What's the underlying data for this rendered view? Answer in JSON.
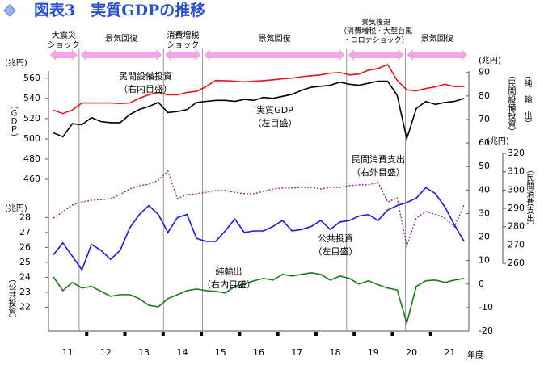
{
  "chart_data": {
    "type": "line",
    "title": "図表3　実質GDPの推移",
    "x": [
      11.125,
      11.375,
      11.625,
      11.875,
      12.125,
      12.375,
      12.625,
      12.875,
      13.125,
      13.375,
      13.625,
      13.875,
      14.125,
      14.375,
      14.625,
      14.875,
      15.125,
      15.375,
      15.625,
      15.875,
      16.125,
      16.375,
      16.625,
      16.875,
      17.125,
      17.375,
      17.625,
      17.875,
      18.125,
      18.375,
      18.625,
      18.875,
      19.125,
      19.375,
      19.625,
      19.875,
      20.125,
      20.375,
      20.625,
      20.875,
      21.125,
      21.375,
      21.625,
      21.875
    ],
    "xlim": [
      11,
      22
    ],
    "xticks": [
      {
        "value": 11.5,
        "label": "11"
      },
      {
        "value": 12.5,
        "label": "12"
      },
      {
        "value": 13.5,
        "label": "13"
      },
      {
        "value": 14.5,
        "label": "14"
      },
      {
        "value": 15.5,
        "label": "15"
      },
      {
        "value": 16.5,
        "label": "16"
      },
      {
        "value": 17.5,
        "label": "17"
      },
      {
        "value": 18.5,
        "label": "18"
      },
      {
        "value": 19.5,
        "label": "19"
      },
      {
        "value": 20.5,
        "label": "20"
      },
      {
        "value": 21.5,
        "label": "21"
      }
    ],
    "xminorticks": [
      12,
      13,
      14,
      15,
      16,
      17,
      18,
      19,
      20,
      21
    ],
    "xlabel": "年度",
    "periods": [
      {
        "label": [
          "大震災",
          "ショック"
        ],
        "start": 11,
        "end": 11.8
      },
      {
        "label": [
          "景気回復"
        ],
        "start": 11.8,
        "end": 14.01
      },
      {
        "label": [
          "消費増税",
          "ショック"
        ],
        "start": 14.01,
        "end": 15.03
      },
      {
        "label": [
          "景気回復"
        ],
        "start": 15.03,
        "end": 18.8
      },
      {
        "label": [
          "景気後退",
          "（消費増税・大型台風",
          "・コロナショック）"
        ],
        "start": 18.8,
        "end": 20.34
      },
      {
        "label": [
          "景気回復"
        ],
        "start": 20.34,
        "end": 22
      }
    ],
    "axes": {
      "gdp": {
        "ylim": [
          310,
          567
        ],
        "yticks": [
          460,
          480,
          500,
          520,
          540,
          560
        ],
        "unit": "(兆円)",
        "title": "（ＧＤＰ）"
      },
      "public": {
        "ylim": [
          20.4,
          37.8
        ],
        "yticks": [
          22,
          23,
          24,
          25,
          26,
          27,
          28
        ],
        "unit": "(兆円)",
        "title": "（公共投資）"
      },
      "inner": {
        "ylim": [
          -20,
          90.6
        ],
        "yticks": [
          -20,
          -10,
          0,
          10,
          20,
          30,
          40,
          50,
          60,
          70,
          80,
          90
        ],
        "unit": "(兆円)",
        "title": [
          "（純　輸　出）",
          "（民間設備投資）"
        ]
      },
      "outer": {
        "ylim": [
          223,
          365
        ],
        "yticks": [
          260,
          270,
          280,
          290,
          300,
          310,
          320
        ],
        "unit": "(兆円)",
        "title": "（民間消費支出）"
      }
    },
    "series": [
      {
        "name": "実質GDP",
        "note": "（左目盛）",
        "axis": "gdp",
        "color": "#000000",
        "style": "solid",
        "values": [
          506,
          502,
          515,
          514,
          521,
          517,
          516,
          516,
          524,
          529,
          532,
          536,
          526,
          527,
          529,
          536,
          537,
          538,
          538,
          537,
          539,
          538,
          541,
          540,
          542,
          544,
          548,
          551,
          552,
          553,
          556,
          554,
          553,
          555,
          557,
          557,
          543,
          500,
          530,
          537,
          534,
          536,
          537,
          540
        ]
      },
      {
        "name": "民間設備投資",
        "note": "（右内目盛）",
        "axis": "inner",
        "color": "#e8141c",
        "style": "solid",
        "values": [
          74,
          72.5,
          74,
          77,
          77,
          77,
          77,
          76.8,
          77,
          79,
          80.5,
          81.5,
          80.5,
          80.5,
          81.5,
          82,
          84,
          86.6,
          86.5,
          86.3,
          86,
          86.3,
          86.5,
          86.9,
          87.3,
          87.6,
          88.2,
          88.6,
          89,
          89.7,
          90,
          89,
          89.3,
          91,
          91.7,
          93.4,
          86.6,
          82.6,
          82.2,
          83.2,
          83.9,
          85,
          84,
          84
        ]
      },
      {
        "name": "民間消費支出",
        "note": "（右外目盛）",
        "axis": "outer",
        "color": "#8b1a8b",
        "style": "dotted",
        "values": [
          284.7,
          288.2,
          291.8,
          293.5,
          294.4,
          294.8,
          295.3,
          297.5,
          300.6,
          302.4,
          303.2,
          305.4,
          310.3,
          295.3,
          297.5,
          298,
          298.8,
          299.7,
          299.7,
          298.8,
          298,
          298,
          299.3,
          300.6,
          301.1,
          301.1,
          301.5,
          301.5,
          300.6,
          301.5,
          301.5,
          302.4,
          302.9,
          302.9,
          304.2,
          293.5,
          295.7,
          269.3,
          284.7,
          288.2,
          286.8,
          284.7,
          280,
          292
        ]
      },
      {
        "name": "公共投資",
        "note": "（左目盛）",
        "axis": "public",
        "color": "#1a1adc",
        "style": "solid",
        "values": [
          25.5,
          26.3,
          25.4,
          24.5,
          26.2,
          25.8,
          25.2,
          25.8,
          27.3,
          28.2,
          28.8,
          28.2,
          27,
          28,
          28.2,
          26.6,
          26.4,
          26.4,
          27.1,
          27.9,
          27,
          27.1,
          27.1,
          27.4,
          27.8,
          27.1,
          27.2,
          27.4,
          27.8,
          27.2,
          27.7,
          27.8,
          28.1,
          28.2,
          27.8,
          28.5,
          28.8,
          29,
          29.3,
          30,
          29.6,
          28.7,
          27.5,
          26.4
        ]
      },
      {
        "name": "純輸出",
        "note": "（右内目盛）",
        "axis": "inner",
        "color": "#1a7a1a",
        "style": "solid",
        "values": [
          3.1,
          -2.8,
          0.7,
          -1.7,
          -1,
          -3.1,
          -5.2,
          -4.5,
          -4.5,
          -6.2,
          -9,
          -9.7,
          -6.2,
          -4.5,
          -2.8,
          -2.1,
          -2.8,
          -3.1,
          -3.8,
          -1,
          0,
          1.4,
          2.4,
          1.7,
          4.1,
          3.4,
          4.1,
          4.8,
          4.1,
          1.7,
          3.4,
          2.4,
          0,
          1.4,
          -0.3,
          -1.7,
          -2.5,
          -16.6,
          -1,
          1.4,
          1.7,
          0.7,
          1.7,
          2.4
        ]
      }
    ]
  }
}
